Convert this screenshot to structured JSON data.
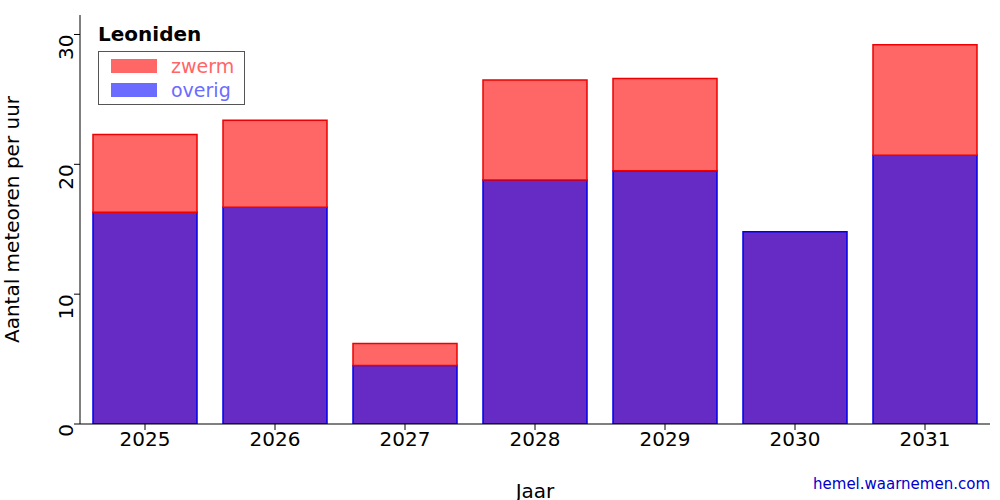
{
  "chart_data": {
    "type": "bar",
    "title": "Leoniden",
    "x_label": "Jaar",
    "y_label": "Aantal meteoren per uur",
    "annotations": [
      "hemel.waarnemen.com"
    ],
    "categories": [
      "2025",
      "2026",
      "2027",
      "2028",
      "2029",
      "2030",
      "2031"
    ],
    "series": [
      {
        "name": "zwerm",
        "color": "#ff6666",
        "values": [
          6.0,
          6.7,
          1.7,
          7.7,
          7.1,
          0,
          8.5
        ]
      },
      {
        "name": "overig",
        "color": "#662bc4",
        "values": [
          16.3,
          16.7,
          4.5,
          18.8,
          19.5,
          14.8,
          20.7
        ]
      }
    ],
    "stacked": true,
    "ylim": [
      0,
      31.5
    ],
    "yticks": [
      0,
      10,
      20,
      30
    ],
    "legend": "upper left",
    "grid": false,
    "data_labels": false
  }
}
